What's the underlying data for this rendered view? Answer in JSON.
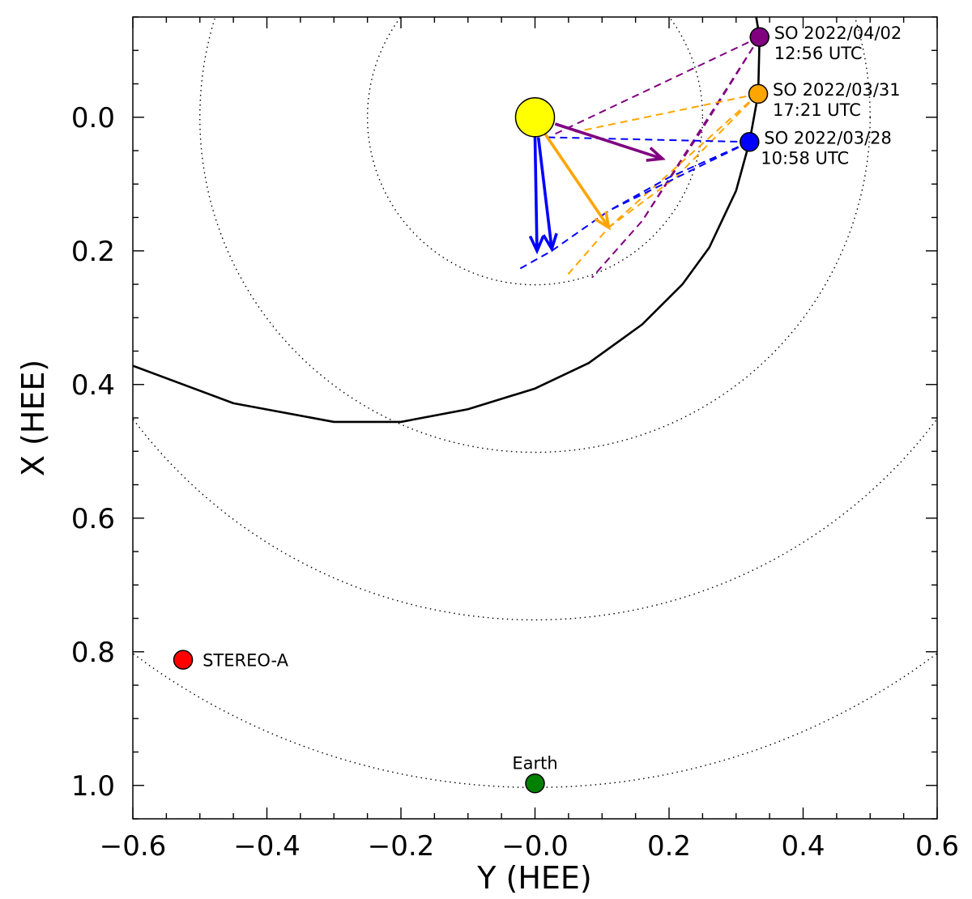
{
  "chart_data": {
    "type": "scatter",
    "xlabel": "Y (HEE)",
    "ylabel": "X (HEE)",
    "xlim": [
      -0.6,
      0.6
    ],
    "ylim": [
      1.05,
      -0.15
    ],
    "y_axis_inverted": true,
    "x_ticks": [
      -0.6,
      -0.4,
      -0.2,
      0.0,
      0.2,
      0.4,
      0.6
    ],
    "x_tick_labels": [
      "−0.6",
      "−0.4",
      "−0.2",
      "−0.0",
      "0.2",
      "0.4",
      "0.6"
    ],
    "y_ticks": [
      0.0,
      0.2,
      0.4,
      0.6,
      0.8,
      1.0
    ],
    "y_tick_labels": [
      "0.0",
      "0.2",
      "0.4",
      "0.6",
      "0.8",
      "1.0"
    ],
    "minor_tick_step": 0.05,
    "grid": false,
    "reference_circles_au": [
      0.25,
      0.5,
      0.75,
      1.0
    ],
    "sun": {
      "x": 0.0,
      "y": 0.0,
      "color": "#ffff00"
    },
    "bodies": [
      {
        "name": "SO",
        "label_line1": "SO 2022/04/02",
        "label_line2": "12:56 UTC",
        "x": 0.335,
        "y": -0.12,
        "color": "#800080",
        "label_side": "right"
      },
      {
        "name": "SO",
        "label_line1": "SO 2022/03/31",
        "label_line2": "17:21 UTC",
        "x": 0.333,
        "y": -0.035,
        "color": "#ffa500",
        "label_side": "right"
      },
      {
        "name": "SO",
        "label_line1": "SO 2022/03/28",
        "label_line2": "10:58 UTC",
        "x": 0.32,
        "y": 0.037,
        "color": "#0000ff",
        "label_side": "right"
      },
      {
        "name": "STEREO-A",
        "label_line1": "STEREO-A",
        "label_line2": "",
        "x": -0.525,
        "y": 0.812,
        "color": "#ff0000",
        "label_side": "right"
      },
      {
        "name": "Earth",
        "label_line1": "Earth",
        "label_line2": "",
        "x": 0.0,
        "y": 0.997,
        "color": "#008000",
        "label_side": "top"
      }
    ],
    "spiral_field_line": {
      "color": "#000000",
      "points": [
        [
          -0.6,
          0.372
        ],
        [
          -0.45,
          0.428
        ],
        [
          -0.3,
          0.456
        ],
        [
          -0.2,
          0.456
        ],
        [
          -0.1,
          0.437
        ],
        [
          0.0,
          0.406
        ],
        [
          0.08,
          0.368
        ],
        [
          0.16,
          0.31
        ],
        [
          0.22,
          0.25
        ],
        [
          0.26,
          0.195
        ],
        [
          0.3,
          0.11
        ],
        [
          0.32,
          0.037
        ],
        [
          0.333,
          -0.035
        ],
        [
          0.335,
          -0.12
        ],
        [
          0.33,
          -0.15
        ]
      ]
    },
    "direction_arrows": [
      {
        "color": "#800080",
        "from": [
          0.03,
          0.01
        ],
        "to": [
          0.19,
          0.062
        ]
      },
      {
        "color": "#ffa500",
        "from": [
          0.015,
          0.025
        ],
        "to": [
          0.11,
          0.165
        ]
      },
      {
        "color": "#0000ff",
        "from": [
          0.0,
          0.03
        ],
        "to": [
          0.003,
          0.2
        ]
      },
      {
        "color": "#0000ff",
        "from": [
          0.005,
          0.03
        ],
        "to": [
          0.025,
          0.197
        ]
      }
    ],
    "connecting_lines": [
      {
        "color": "#800080",
        "points": [
          [
            0.335,
            -0.12
          ],
          [
            0.03,
            0.025
          ]
        ]
      },
      {
        "color": "#800080",
        "points": [
          [
            0.335,
            -0.12
          ],
          [
            0.16,
            0.155
          ],
          [
            0.085,
            0.24
          ]
        ]
      },
      {
        "color": "#800080",
        "points": [
          [
            0.335,
            -0.12
          ],
          [
            0.245,
            0.025
          ],
          [
            0.16,
            0.155
          ]
        ]
      },
      {
        "color": "#ffa500",
        "points": [
          [
            0.333,
            -0.035
          ],
          [
            0.06,
            0.022
          ]
        ]
      },
      {
        "color": "#ffa500",
        "points": [
          [
            0.333,
            -0.035
          ],
          [
            0.11,
            0.165
          ],
          [
            0.045,
            0.24
          ]
        ]
      },
      {
        "color": "#ffa500",
        "points": [
          [
            0.333,
            -0.035
          ],
          [
            0.21,
            0.09
          ],
          [
            0.11,
            0.165
          ]
        ]
      },
      {
        "color": "#0000ff",
        "points": [
          [
            0.32,
            0.037
          ],
          [
            0.02,
            0.03
          ]
        ]
      },
      {
        "color": "#0000ff",
        "points": [
          [
            0.32,
            0.037
          ],
          [
            0.11,
            0.14
          ],
          [
            0.025,
            0.2
          ],
          [
            -0.025,
            0.228
          ]
        ]
      },
      {
        "color": "#0000ff",
        "points": [
          [
            0.32,
            0.037
          ],
          [
            0.2,
            0.09
          ],
          [
            0.11,
            0.14
          ]
        ]
      }
    ]
  }
}
